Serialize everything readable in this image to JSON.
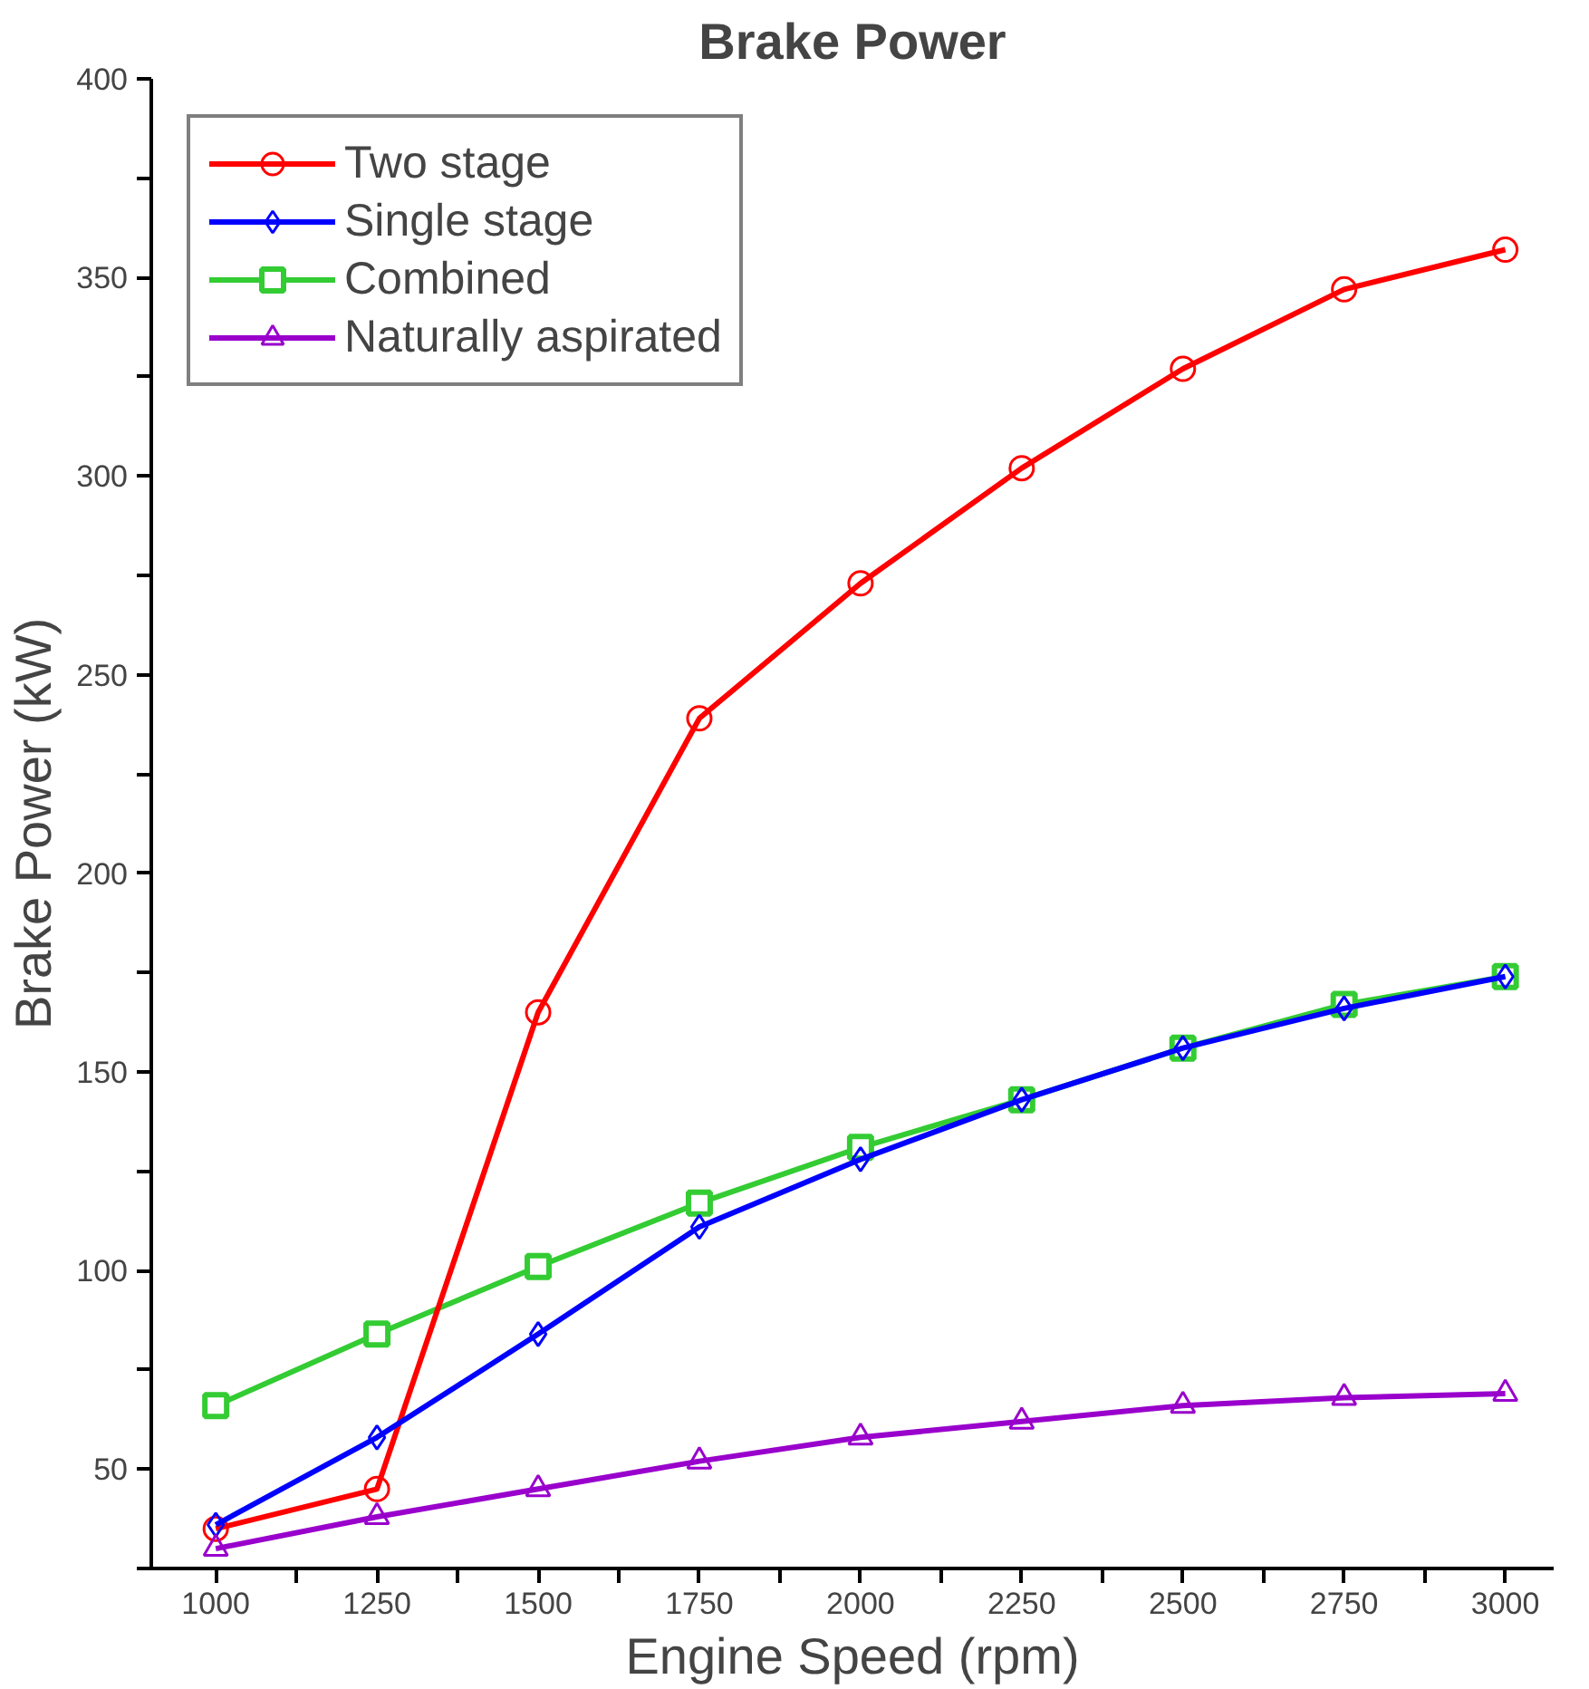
{
  "chart_data": {
    "type": "line",
    "title": "Brake Power",
    "xlabel": "Engine Speed (rpm)",
    "ylabel": "Brake Power (kW)",
    "x": [
      1000,
      1250,
      1500,
      1750,
      2000,
      2250,
      2500,
      2750,
      3000
    ],
    "series": [
      {
        "name": "Two stage",
        "color": "#ff0000",
        "marker": "circle",
        "values": [
          35,
          45,
          165,
          239,
          273,
          302,
          327,
          347,
          357
        ]
      },
      {
        "name": "Single stage",
        "color": "#0000ff",
        "marker": "diamond",
        "values": [
          36,
          58,
          84,
          111,
          128,
          143,
          156,
          166,
          174
        ]
      },
      {
        "name": "Combined",
        "color": "#33cc33",
        "marker": "square",
        "values": [
          66,
          84,
          101,
          117,
          131,
          143,
          156,
          167,
          174
        ]
      },
      {
        "name": "Naturally aspirated",
        "color": "#9900cc",
        "marker": "triangle",
        "values": [
          30,
          38,
          45,
          52,
          58,
          62,
          66,
          68,
          69
        ]
      }
    ],
    "xlim": [
      900,
      3075
    ],
    "ylim": [
      25,
      400
    ],
    "xticks": [
      1000,
      {
        "value": 1125,
        "label": null
      },
      1250,
      {
        "value": 1375,
        "label": null
      },
      1500,
      {
        "value": 1625,
        "label": null
      },
      1750,
      {
        "value": 1875,
        "label": null
      },
      2000,
      {
        "value": 2125,
        "label": null
      },
      2250,
      {
        "value": 2375,
        "label": null
      },
      2500,
      {
        "value": 2625,
        "label": null
      },
      2750,
      {
        "value": 2875,
        "label": null
      },
      3000
    ],
    "yticks": [
      {
        "value": 25,
        "label": null
      },
      50,
      {
        "value": 75,
        "label": null
      },
      100,
      {
        "value": 125,
        "label": null
      },
      150,
      {
        "value": 175,
        "label": null
      },
      200,
      {
        "value": 225,
        "label": null
      },
      250,
      {
        "value": 275,
        "label": null
      },
      300,
      {
        "value": 325,
        "label": null
      },
      350,
      {
        "value": 375,
        "label": null
      },
      400
    ],
    "grid": false,
    "legend": "top left",
    "line_style": "solid"
  }
}
